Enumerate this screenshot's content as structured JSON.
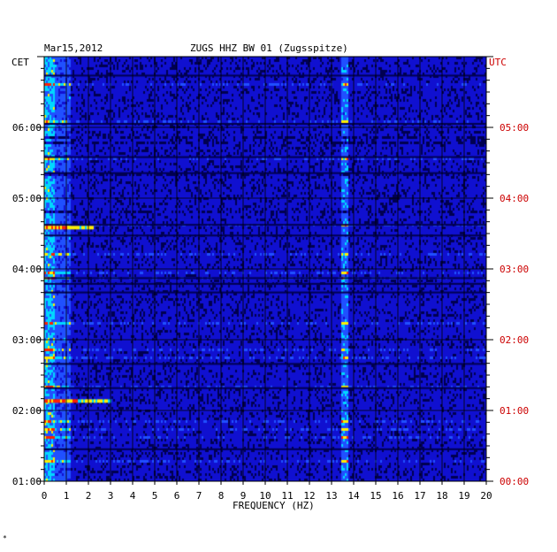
{
  "header": {
    "date": "Mar15,2012",
    "station_title": "ZUGS HHZ BW 01 (Zugsspitze)",
    "left_timezone": "CET",
    "right_timezone": "UTC"
  },
  "footer": {
    "corner_mark": "*"
  },
  "chart_data": {
    "type": "heatmap",
    "title": "ZUGS HHZ BW 01 (Zugsspitze)",
    "date": "Mar15,2012",
    "xlabel": "FREQUENCY (HZ)",
    "x_ticks": [
      "0",
      "1",
      "2",
      "3",
      "4",
      "5",
      "6",
      "7",
      "8",
      "9",
      "10",
      "11",
      "12",
      "13",
      "14",
      "15",
      "16",
      "17",
      "18",
      "19",
      "20"
    ],
    "xlim": [
      0,
      20
    ],
    "y_left_label": "CET",
    "y_left_ticks": [
      "06:00",
      "05:00",
      "04:00",
      "03:00",
      "02:00",
      "01:00"
    ],
    "y_right_label": "UTC",
    "y_right_ticks": [
      "05:00",
      "04:00",
      "03:00",
      "02:00",
      "01:00",
      "00:00"
    ],
    "y_range_cet": [
      "01:00",
      "07:00"
    ],
    "grid": true,
    "colors": {
      "background": "#1010d0",
      "dark_band": "#000050",
      "mid": "#2050ff",
      "cyan": "#00d8ff",
      "yellow": "#ffee00",
      "red": "#ff2000",
      "grid": "#000000",
      "utc_text": "#cc0000"
    },
    "features": [
      {
        "name": "persistent line",
        "frequency_hz": 13.6
      },
      {
        "name": "low-frequency energy",
        "frequency_hz_range": [
          0,
          0.6
        ]
      },
      {
        "name": "event",
        "time_cet": "04:35",
        "frequency_hz_range": [
          0,
          2.2
        ]
      },
      {
        "name": "event",
        "time_cet": "02:08",
        "frequency_hz_range": [
          0,
          3.0
        ]
      }
    ]
  }
}
